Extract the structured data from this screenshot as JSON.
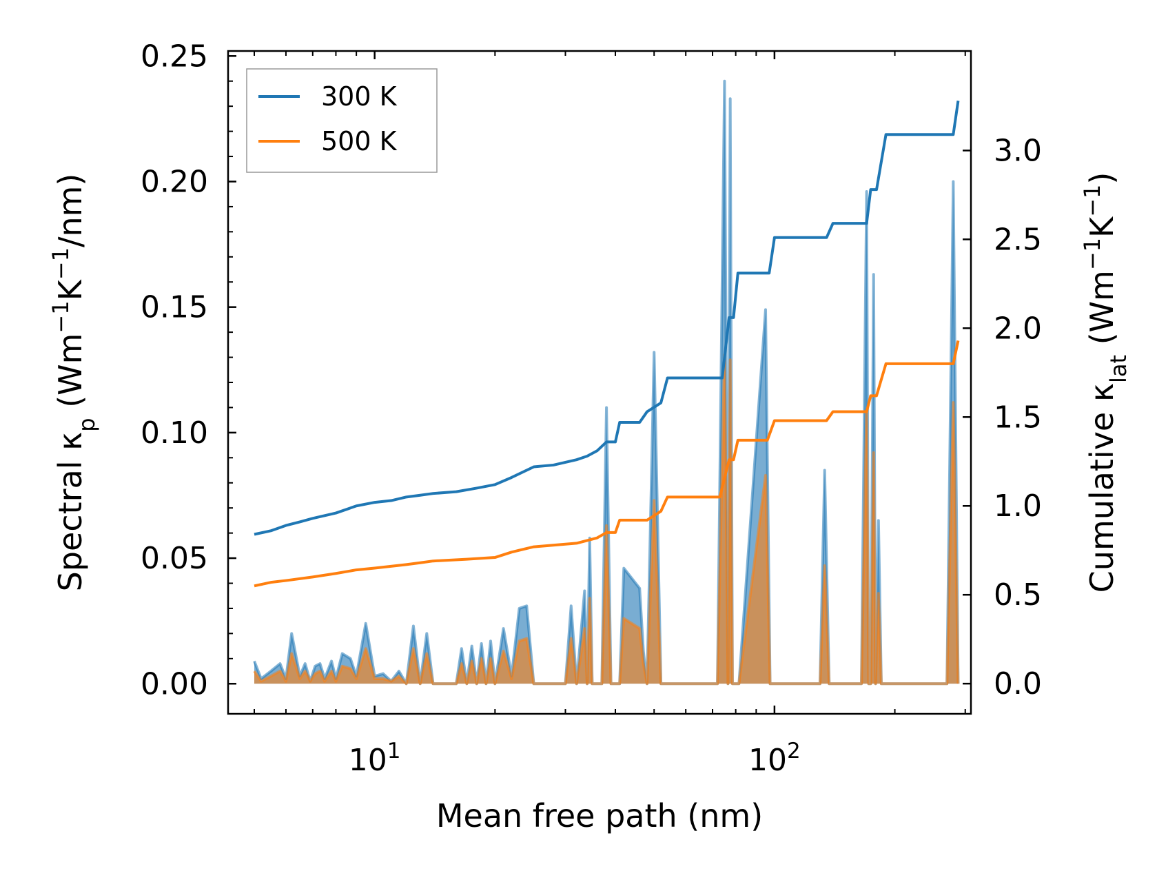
{
  "chart_data": {
    "type": "line",
    "xlabel": "Mean free path (nm)",
    "xscale": "log",
    "xlim": [
      4.3,
      310
    ],
    "x_ticks": [
      {
        "value": 10,
        "base": "10",
        "exp": "1"
      },
      {
        "value": 100,
        "base": "10",
        "exp": "2"
      }
    ],
    "ylabel_left": {
      "prefix": "Spectral κ",
      "sub": "p",
      "units_open": " (Wm",
      "sup1": "−1",
      "mid": "K",
      "sup2": "−1",
      "units_close": "/nm)"
    },
    "ylim_left": [
      -0.012,
      0.252
    ],
    "yticks_left": [
      "0.00",
      "0.05",
      "0.10",
      "0.15",
      "0.20",
      "0.25"
    ],
    "ylabel_right": {
      "prefix": "Cumulative κ",
      "sub": "lat",
      "units_open": " (Wm",
      "sup1": "−1",
      "mid": "K",
      "sup2": "−1",
      "units_close": ")"
    },
    "ylim_right": [
      -0.17,
      3.56
    ],
    "yticks_right": [
      "0.0",
      "0.5",
      "1.0",
      "1.5",
      "2.0",
      "2.5",
      "3.0"
    ],
    "legend": [
      {
        "name": "300 K",
        "color": "#1f77b4"
      },
      {
        "name": "500 K",
        "color": "#ff7f0e"
      }
    ],
    "legend_position": "top-left",
    "cumulative_series": [
      {
        "name": "300 K",
        "color": "#1f77b4",
        "axis": "right",
        "x": [
          5.0,
          5.5,
          6.0,
          6.5,
          7.0,
          8.0,
          9.0,
          10.0,
          11.0,
          12.0,
          13.0,
          14.0,
          16.0,
          18.0,
          20.0,
          22.0,
          25.0,
          28.0,
          32.0,
          34.0,
          36.0,
          38.0,
          40.0,
          41.0,
          46.0,
          48.0,
          52.0,
          54.0,
          74.0,
          77.0,
          79.0,
          81.0,
          97.0,
          100.0,
          135.0,
          140.0,
          170.0,
          174.0,
          180.0,
          190.0,
          280.0,
          288.0
        ],
        "y": [
          0.84,
          0.86,
          0.89,
          0.91,
          0.93,
          0.96,
          1.0,
          1.02,
          1.03,
          1.05,
          1.06,
          1.07,
          1.08,
          1.1,
          1.12,
          1.16,
          1.22,
          1.23,
          1.26,
          1.28,
          1.31,
          1.36,
          1.36,
          1.47,
          1.47,
          1.53,
          1.58,
          1.72,
          1.72,
          2.06,
          2.06,
          2.31,
          2.31,
          2.51,
          2.51,
          2.59,
          2.59,
          2.78,
          2.78,
          3.09,
          3.09,
          3.28
        ]
      },
      {
        "name": "500 K",
        "color": "#ff7f0e",
        "axis": "right",
        "x": [
          5.0,
          5.5,
          6.0,
          7.0,
          8.0,
          9.0,
          10.0,
          12.0,
          13.0,
          14.0,
          17.0,
          20.0,
          22.0,
          25.0,
          32.0,
          36.0,
          38.0,
          40.0,
          41.0,
          48.0,
          52.0,
          54.0,
          73.0,
          77.0,
          79.0,
          81.0,
          96.0,
          100.0,
          135.0,
          140.0,
          170.0,
          174.0,
          180.0,
          190.0,
          280.0,
          288.0
        ],
        "y": [
          0.55,
          0.57,
          0.58,
          0.6,
          0.62,
          0.64,
          0.65,
          0.67,
          0.68,
          0.69,
          0.7,
          0.71,
          0.74,
          0.77,
          0.79,
          0.82,
          0.85,
          0.85,
          0.92,
          0.92,
          0.97,
          1.05,
          1.05,
          1.26,
          1.26,
          1.37,
          1.37,
          1.48,
          1.48,
          1.53,
          1.53,
          1.62,
          1.62,
          1.8,
          1.8,
          1.93
        ]
      }
    ],
    "spectral_series": [
      {
        "name": "300 K",
        "color": "#1f77b4",
        "axis": "left",
        "x": [
          5.0,
          5.2,
          5.5,
          5.8,
          6.0,
          6.2,
          6.5,
          6.7,
          6.9,
          7.1,
          7.3,
          7.5,
          7.8,
          8.0,
          8.3,
          8.7,
          9.0,
          9.5,
          10.0,
          10.5,
          11.0,
          11.5,
          12.0,
          12.5,
          13.0,
          13.5,
          14.0,
          14.5,
          16.0,
          16.5,
          17.0,
          17.5,
          18.0,
          18.5,
          19.0,
          19.5,
          20.0,
          21.0,
          22.0,
          23.0,
          24.0,
          25.0,
          26.5,
          30.0,
          31.0,
          32.0,
          33.5,
          34.0,
          34.5,
          35.0,
          36.0,
          37.0,
          38.0,
          39.0,
          40.0,
          41.0,
          42.0,
          46.0,
          47.0,
          48.0,
          50.0,
          52.0,
          53.0,
          54.0,
          72.0,
          75.0,
          76.5,
          77.5,
          78.5,
          79.5,
          80.5,
          81.5,
          95.0,
          97.5,
          100.0,
          130.0,
          133.5,
          137.0,
          165.0,
          170.0,
          172.0,
          174.0,
          177.0,
          179.0,
          182.0,
          185.0,
          188.0,
          191.0,
          194.0,
          270.0,
          280.0,
          288.0
        ],
        "y": [
          0.009,
          0.002,
          0.005,
          0.008,
          0.002,
          0.02,
          0.003,
          0.008,
          0.001,
          0.007,
          0.008,
          0.002,
          0.009,
          0.002,
          0.012,
          0.01,
          0.003,
          0.024,
          0.003,
          0.004,
          0.001,
          0.005,
          0.0,
          0.023,
          0.0,
          0.02,
          0.0,
          0.0,
          0.0,
          0.014,
          0.0,
          0.015,
          0.0,
          0.016,
          0.0,
          0.017,
          0.0,
          0.022,
          0.003,
          0.03,
          0.031,
          0.0,
          0.0,
          0.0,
          0.031,
          0.0,
          0.037,
          0.0,
          0.058,
          0.0,
          0.0,
          0.0,
          0.11,
          0.0,
          0.0,
          0.0,
          0.046,
          0.038,
          0.013,
          0.0,
          0.132,
          0.0,
          0.0,
          0.0,
          0.0,
          0.24,
          0.0,
          0.233,
          0.0,
          0.0,
          0.0,
          0.0,
          0.149,
          0.0,
          0.0,
          0.0,
          0.085,
          0.0,
          0.0,
          0.196,
          0.0,
          0.0,
          0.163,
          0.0,
          0.065,
          0.0,
          0.0,
          0.0,
          0.0,
          0.0,
          0.2,
          0.0
        ]
      },
      {
        "name": "500 K",
        "color": "#ff7f0e",
        "axis": "left",
        "x": [
          5.0,
          5.2,
          5.5,
          5.8,
          6.0,
          6.2,
          6.5,
          6.7,
          6.9,
          7.1,
          7.3,
          7.5,
          7.8,
          8.0,
          8.3,
          8.7,
          9.0,
          9.5,
          10.0,
          10.5,
          11.0,
          11.5,
          12.0,
          12.5,
          13.0,
          13.5,
          14.0,
          14.5,
          16.0,
          16.5,
          17.0,
          17.5,
          18.0,
          18.5,
          19.0,
          19.5,
          20.0,
          21.0,
          22.0,
          23.0,
          24.0,
          25.0,
          26.5,
          30.0,
          31.0,
          32.0,
          33.5,
          34.0,
          34.5,
          35.0,
          36.0,
          37.0,
          38.0,
          39.0,
          40.0,
          41.0,
          42.0,
          46.0,
          47.0,
          48.0,
          50.0,
          52.0,
          53.0,
          54.0,
          72.0,
          75.0,
          76.5,
          77.5,
          78.5,
          79.5,
          80.5,
          81.5,
          95.0,
          97.5,
          100.0,
          130.0,
          133.5,
          137.0,
          165.0,
          170.0,
          172.0,
          174.0,
          177.0,
          179.0,
          182.0,
          185.0,
          188.0,
          191.0,
          194.0,
          270.0,
          280.0,
          288.0
        ],
        "y": [
          0.005,
          0.001,
          0.003,
          0.005,
          0.001,
          0.012,
          0.002,
          0.005,
          0.001,
          0.004,
          0.005,
          0.001,
          0.005,
          0.001,
          0.007,
          0.006,
          0.002,
          0.014,
          0.002,
          0.002,
          0.001,
          0.003,
          0.0,
          0.014,
          0.0,
          0.012,
          0.0,
          0.0,
          0.0,
          0.008,
          0.0,
          0.009,
          0.0,
          0.01,
          0.0,
          0.01,
          0.0,
          0.013,
          0.002,
          0.017,
          0.018,
          0.0,
          0.0,
          0.0,
          0.018,
          0.0,
          0.022,
          0.0,
          0.034,
          0.0,
          0.0,
          0.0,
          0.063,
          0.0,
          0.0,
          0.0,
          0.026,
          0.022,
          0.008,
          0.0,
          0.073,
          0.0,
          0.0,
          0.0,
          0.0,
          0.131,
          0.0,
          0.129,
          0.0,
          0.0,
          0.0,
          0.0,
          0.083,
          0.0,
          0.0,
          0.0,
          0.047,
          0.0,
          0.0,
          0.109,
          0.0,
          0.0,
          0.092,
          0.0,
          0.036,
          0.0,
          0.0,
          0.0,
          0.0,
          0.0,
          0.112,
          0.0
        ]
      }
    ]
  }
}
